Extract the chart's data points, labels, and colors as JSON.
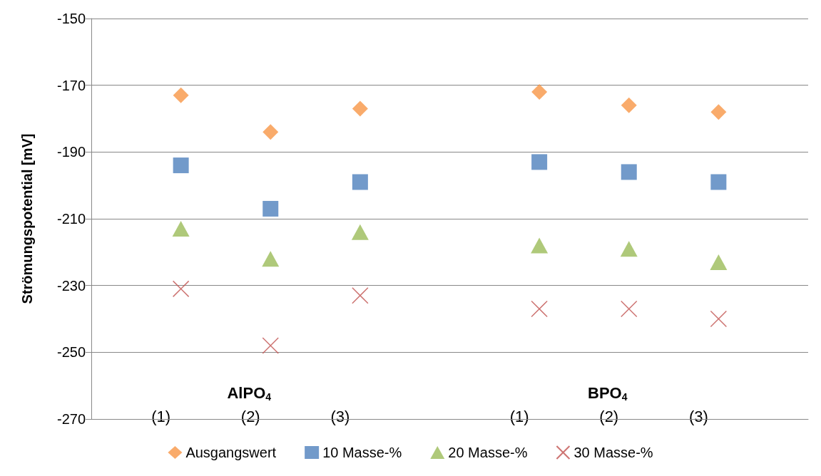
{
  "chart_data": {
    "type": "scatter",
    "ylabel": "Strömungspotential [mV]",
    "categories": [
      null,
      null,
      null,
      null,
      null,
      null,
      null,
      null,
      null
    ],
    "series": [
      {
        "name": "Ausgangswert",
        "color": "#f79646",
        "marker": "diamond",
        "values": [
          null,
          -173,
          -184,
          -177,
          null,
          -172,
          -176,
          -178,
          null
        ]
      },
      {
        "name": "10 Masse-%",
        "color": "#4f81bd",
        "marker": "square",
        "values": [
          null,
          -194,
          -207,
          -199,
          null,
          -193,
          -196,
          -199,
          null
        ]
      },
      {
        "name": "20 Masse-%",
        "color": "#9bbb59",
        "marker": "triangle",
        "values": [
          null,
          -213,
          -222,
          -214,
          null,
          -218,
          -219,
          -223,
          null
        ]
      },
      {
        "name": "30 Masse-%",
        "color": "#c0504d",
        "marker": "cross",
        "values": [
          null,
          -231,
          -248,
          -233,
          null,
          -237,
          -237,
          -240,
          null
        ]
      }
    ],
    "ylim": [
      -270,
      -150
    ],
    "yticks": [
      -270,
      -250,
      -230,
      -210,
      -190,
      -170,
      -150
    ],
    "grid": "y",
    "legend": "bottom",
    "annotations": [
      "AlPO$_{4}$",
      "(1)",
      "(2)",
      "(3)",
      "BPO$_{4}$",
      "(1)",
      "(2)",
      "(3)"
    ]
  }
}
